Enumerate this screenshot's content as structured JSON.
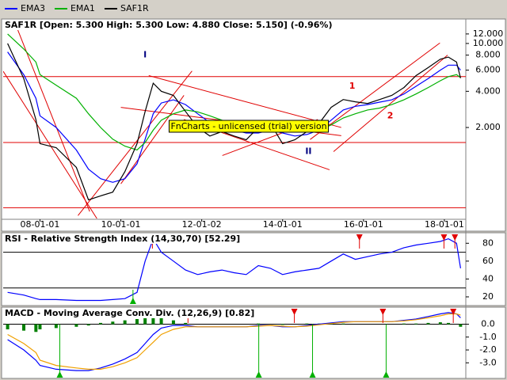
{
  "chart_data": [
    {
      "type": "line",
      "title": "SAF1R [Open: 5.300  High: 5.300  Low: 4.880  Close: 5.150] (-0.96%)",
      "log_scale": true,
      "x": [
        2007.2,
        2007.6,
        2007.9,
        2008.0,
        2008.4,
        2008.9,
        2009.2,
        2009.5,
        2009.8,
        2010.1,
        2010.4,
        2010.6,
        2010.8,
        2011.0,
        2011.3,
        2011.6,
        2011.9,
        2012.2,
        2012.5,
        2012.8,
        2013.1,
        2013.4,
        2013.7,
        2014.0,
        2014.3,
        2014.6,
        2014.9,
        2015.2,
        2015.5,
        2015.8,
        2016.1,
        2016.4,
        2016.7,
        2017.0,
        2017.3,
        2017.6,
        2017.9,
        2018.1,
        2018.3,
        2018.4
      ],
      "series": [
        {
          "name": "EMA3",
          "color": "#0000ff",
          "values": [
            8.5,
            5.5,
            3.5,
            2.5,
            2.0,
            1.3,
            0.9,
            0.75,
            0.7,
            0.75,
            1.0,
            1.6,
            2.6,
            3.2,
            3.4,
            3.1,
            2.6,
            2.2,
            2.0,
            1.9,
            1.8,
            1.8,
            1.9,
            1.8,
            1.7,
            1.75,
            1.9,
            2.3,
            2.8,
            3.0,
            3.1,
            3.25,
            3.4,
            3.8,
            4.4,
            5.1,
            6.0,
            6.6,
            6.6,
            6.0
          ]
        },
        {
          "name": "EMA1",
          "color": "#00b000",
          "values": [
            12,
            9,
            7,
            5.5,
            4.5,
            3.5,
            2.6,
            2.0,
            1.6,
            1.4,
            1.3,
            1.5,
            1.9,
            2.3,
            2.6,
            2.8,
            2.7,
            2.5,
            2.3,
            2.2,
            2.1,
            2.0,
            2.0,
            1.9,
            1.85,
            1.85,
            1.9,
            2.1,
            2.4,
            2.6,
            2.8,
            2.9,
            3.1,
            3.4,
            3.8,
            4.3,
            4.9,
            5.3,
            5.5,
            5.2
          ]
        },
        {
          "name": "SAF1R",
          "color": "#000000",
          "values": [
            10,
            5.1,
            2.33,
            1.47,
            1.36,
            0.93,
            0.5,
            0.54,
            0.58,
            0.86,
            1.47,
            2.72,
            4.67,
            4.0,
            3.7,
            2.72,
            2.0,
            1.7,
            1.85,
            1.7,
            1.58,
            2.0,
            2.16,
            1.47,
            1.58,
            1.85,
            2.16,
            2.94,
            3.42,
            3.27,
            3.17,
            3.42,
            3.7,
            4.3,
            5.4,
            6.3,
            7.4,
            7.7,
            7.0,
            5.15
          ]
        }
      ],
      "xlim": [
        2007.09,
        2018.53
      ],
      "ylim": [
        0.35,
        15.5
      ],
      "xticks": [
        {
          "value": 2008,
          "label": "08-01-01"
        },
        {
          "value": 2010,
          "label": "10-01-01"
        },
        {
          "value": 2012,
          "label": "12-01-02"
        },
        {
          "value": 2014,
          "label": "14-01-01"
        },
        {
          "value": 2016,
          "label": "16-01-01"
        },
        {
          "value": 2018,
          "label": "18-01-01"
        }
      ],
      "yticks": [
        {
          "value": 2,
          "label": "2.000"
        },
        {
          "value": 4,
          "label": "4.000"
        },
        {
          "value": 6,
          "label": "6.000"
        },
        {
          "value": 8,
          "label": "8.000"
        },
        {
          "value": 10,
          "label": "10.000"
        },
        {
          "value": 12,
          "label": "12.000"
        }
      ],
      "levels": [
        5.3,
        1.5,
        0.43
      ],
      "level_color": "#e00000",
      "trendlines": [
        [
          [
            2007.09,
            5.87
          ],
          [
            2009.62,
            0.27
          ]
        ],
        [
          [
            2007.38,
            14.9
          ],
          [
            2009.23,
            0.4
          ]
        ],
        [
          [
            2008.94,
            0.37
          ],
          [
            2011.76,
            5.9
          ]
        ],
        [
          [
            2010.0,
            0.68
          ],
          [
            2011.56,
            3.7
          ]
        ],
        [
          [
            2010.0,
            2.94
          ],
          [
            2015.45,
            1.71
          ]
        ],
        [
          [
            2010.69,
            5.4
          ],
          [
            2015.45,
            2.0
          ]
        ],
        [
          [
            2012.51,
            1.17
          ],
          [
            2014.87,
            2.33
          ]
        ],
        [
          [
            2011.56,
            2.33
          ],
          [
            2015.16,
            0.89
          ]
        ],
        [
          [
            2014.68,
            1.59
          ],
          [
            2017.89,
            10.1
          ]
        ],
        [
          [
            2015.26,
            1.26
          ],
          [
            2018.08,
            8.0
          ]
        ]
      ],
      "annotations": [
        {
          "text": "I",
          "x": 2010.6,
          "y": 8.0,
          "color": "#000080"
        },
        {
          "text": "II",
          "x": 2014.64,
          "y": 1.26,
          "color": "#000080"
        },
        {
          "text": "1",
          "x": 2015.72,
          "y": 4.4,
          "color": "#e00000"
        },
        {
          "text": "2",
          "x": 2016.66,
          "y": 2.5,
          "color": "#e00000"
        }
      ],
      "watermark": "FnCharts - unlicensed (trial) version"
    },
    {
      "type": "line",
      "title": "RSI - Relative Strength Index (14,30,70) [52.29]",
      "x": [
        2007.2,
        2007.6,
        2007.9,
        2008.0,
        2008.4,
        2008.9,
        2009.2,
        2009.5,
        2009.8,
        2010.1,
        2010.4,
        2010.6,
        2010.8,
        2011.0,
        2011.3,
        2011.6,
        2011.9,
        2012.2,
        2012.5,
        2012.8,
        2013.1,
        2013.4,
        2013.7,
        2014.0,
        2014.3,
        2014.6,
        2014.9,
        2015.2,
        2015.5,
        2015.8,
        2016.1,
        2016.4,
        2016.7,
        2017.0,
        2017.3,
        2017.6,
        2017.9,
        2018.1,
        2018.3,
        2018.4
      ],
      "series": [
        {
          "color": "#0000ff",
          "values": [
            25,
            22,
            18,
            17,
            17,
            16,
            16,
            16,
            17,
            18,
            25,
            60,
            85,
            70,
            60,
            50,
            45,
            48,
            50,
            47,
            45,
            55,
            52,
            45,
            48,
            50,
            52,
            60,
            68,
            62,
            65,
            68,
            70,
            75,
            78,
            80,
            82,
            85,
            80,
            52
          ]
        }
      ],
      "xlim": [
        2007.09,
        2018.53
      ],
      "ylim": [
        12,
        90
      ],
      "yticks": [
        20,
        40,
        60,
        80
      ],
      "levels": [
        70,
        30
      ],
      "level_color": "#000000",
      "buy_signals": [
        2010.3
      ],
      "sell_signals": [
        2010.78,
        2015.9,
        2017.99,
        2018.26
      ]
    },
    {
      "type": "line",
      "title": "MACD - Moving Average Conv. Div. (12,26,9) [0.82]",
      "x": [
        2007.2,
        2007.6,
        2007.9,
        2008.0,
        2008.4,
        2008.9,
        2009.2,
        2009.5,
        2009.8,
        2010.1,
        2010.4,
        2010.6,
        2010.8,
        2011.0,
        2011.3,
        2011.6,
        2011.9,
        2012.2,
        2012.5,
        2012.8,
        2013.1,
        2013.4,
        2013.7,
        2014.0,
        2014.3,
        2014.6,
        2014.9,
        2015.2,
        2015.5,
        2015.8,
        2016.1,
        2016.4,
        2016.7,
        2017.0,
        2017.3,
        2017.6,
        2017.9,
        2018.1,
        2018.3,
        2018.4
      ],
      "series": [
        {
          "color": "#0000ff",
          "values": [
            -1.2,
            -2.0,
            -2.8,
            -3.2,
            -3.5,
            -3.6,
            -3.6,
            -3.4,
            -3.1,
            -2.7,
            -2.2,
            -1.5,
            -0.8,
            -0.3,
            -0.1,
            -0.1,
            -0.2,
            -0.2,
            -0.2,
            -0.2,
            -0.2,
            -0.1,
            -0.1,
            -0.2,
            -0.2,
            -0.1,
            0.0,
            0.1,
            0.2,
            0.2,
            0.2,
            0.2,
            0.2,
            0.3,
            0.4,
            0.6,
            0.8,
            0.9,
            0.8,
            0.5
          ]
        },
        {
          "color": "#f0a000",
          "values": [
            -0.8,
            -1.5,
            -2.2,
            -2.8,
            -3.2,
            -3.4,
            -3.5,
            -3.5,
            -3.3,
            -3.0,
            -2.6,
            -2.0,
            -1.4,
            -0.8,
            -0.4,
            -0.2,
            -0.2,
            -0.2,
            -0.2,
            -0.2,
            -0.2,
            -0.15,
            -0.1,
            -0.15,
            -0.2,
            -0.15,
            -0.05,
            0.05,
            0.15,
            0.2,
            0.2,
            0.2,
            0.2,
            0.25,
            0.35,
            0.5,
            0.65,
            0.8,
            0.8,
            0.7
          ]
        }
      ],
      "histogram": {
        "color": "#008000",
        "values": [
          -0.4,
          -0.5,
          -0.6,
          -0.4,
          -0.3,
          -0.2,
          -0.1,
          0.1,
          0.2,
          0.3,
          0.4,
          0.5,
          0.6,
          0.5,
          0.3,
          0.1,
          0,
          0,
          0,
          0,
          0,
          0.05,
          0,
          -0.05,
          0,
          0.05,
          0.05,
          0.05,
          0.05,
          0,
          0,
          0,
          0,
          0.05,
          0.05,
          0.1,
          0.15,
          0.1,
          0,
          -0.2
        ]
      },
      "xlim": [
        2007.09,
        2018.53
      ],
      "ylim": [
        -4.15,
        1.2
      ],
      "yticks": [
        {
          "value": 0,
          "label": "0.0"
        },
        {
          "value": -1,
          "label": "-1.0"
        },
        {
          "value": -2,
          "label": "-2.0"
        },
        {
          "value": -3,
          "label": "-3.0"
        }
      ],
      "levels": [
        0
      ],
      "level_color": "#000000",
      "buy_signals": [
        2008.49,
        2013.41,
        2014.74,
        2016.56
      ],
      "sell_signals": [
        2011.66,
        2014.29,
        2016.48,
        2018.22
      ]
    }
  ]
}
